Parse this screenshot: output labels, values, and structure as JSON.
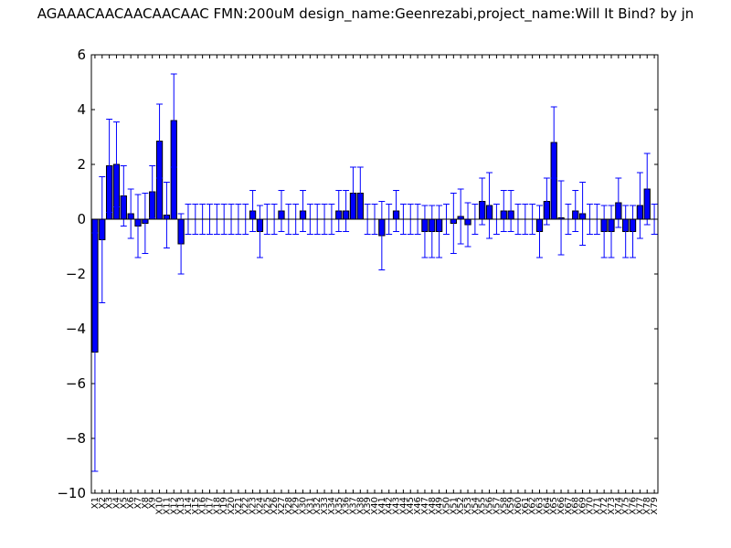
{
  "chart_data": {
    "type": "bar",
    "title": "AGAAACAACAACAACAAC  FMN:200uM  design_name:Geenrezabi,project_name:Will It Bind? by jn",
    "xlabel": "",
    "ylabel": "",
    "ylim": [
      -10,
      6
    ],
    "yticks": [
      -10,
      -8,
      -6,
      -4,
      -2,
      0,
      2,
      4,
      6
    ],
    "grid": false,
    "bar_color": "#0000ff",
    "error_color": "#0000ff",
    "categories": [
      "X1",
      "X2",
      "X3",
      "X4",
      "X5",
      "X6",
      "X7",
      "X8",
      "X9",
      "X10",
      "X11",
      "X12",
      "X13",
      "X14",
      "X15",
      "X16",
      "X17",
      "X18",
      "X19",
      "X20",
      "X21",
      "X22",
      "X23",
      "X24",
      "X25",
      "X26",
      "X27",
      "X28",
      "X29",
      "X30",
      "X31",
      "X32",
      "X33",
      "X34",
      "X35",
      "X36",
      "X37",
      "X38",
      "X39",
      "X40",
      "X41",
      "X42",
      "X43",
      "X44",
      "X45",
      "X46",
      "X47",
      "X48",
      "X49",
      "X50",
      "X51",
      "X52",
      "X53",
      "X54",
      "X55",
      "X56",
      "X57",
      "X58",
      "X59",
      "X60",
      "X61",
      "X62",
      "X63",
      "X64",
      "X65",
      "X66",
      "X67",
      "X68",
      "X69",
      "X70",
      "X71",
      "X72",
      "X73",
      "X74",
      "X75",
      "X76",
      "X77",
      "X78",
      "X79"
    ],
    "values": [
      -4.85,
      -0.75,
      1.95,
      2.0,
      0.85,
      0.2,
      -0.25,
      -0.15,
      1.0,
      2.85,
      0.15,
      3.6,
      -0.9,
      0,
      0,
      0,
      0,
      0,
      0,
      0,
      0,
      0,
      0.3,
      -0.45,
      0,
      0,
      0.3,
      0,
      0,
      0.3,
      0,
      0,
      0,
      0,
      0.3,
      0.3,
      0.95,
      0.95,
      0,
      0,
      -0.6,
      0,
      0.3,
      0,
      0,
      0,
      -0.45,
      -0.45,
      -0.45,
      0,
      -0.15,
      0.1,
      -0.2,
      0,
      0.65,
      0.5,
      0,
      0.3,
      0.3,
      0,
      0,
      0,
      -0.45,
      0.65,
      2.8,
      0.05,
      0,
      0.3,
      0.2,
      0,
      0,
      -0.45,
      -0.45,
      0.6,
      -0.45,
      -0.45,
      0.5,
      1.1,
      0
    ],
    "errors": [
      4.35,
      2.3,
      1.7,
      1.55,
      1.1,
      0.9,
      1.15,
      1.1,
      0.95,
      1.35,
      1.2,
      1.7,
      1.1,
      0.55,
      0.55,
      0.55,
      0.55,
      0.55,
      0.55,
      0.55,
      0.55,
      0.55,
      0.75,
      0.95,
      0.55,
      0.55,
      0.75,
      0.55,
      0.55,
      0.75,
      0.55,
      0.55,
      0.55,
      0.55,
      0.75,
      0.75,
      0.95,
      0.95,
      0.55,
      0.55,
      1.25,
      0.55,
      0.75,
      0.55,
      0.55,
      0.55,
      0.95,
      0.95,
      0.95,
      0.55,
      1.1,
      1.0,
      0.8,
      0.55,
      0.85,
      1.2,
      0.55,
      0.75,
      0.75,
      0.55,
      0.55,
      0.55,
      0.95,
      0.85,
      1.3,
      1.35,
      0.55,
      0.75,
      1.15,
      0.55,
      0.55,
      0.95,
      0.95,
      0.9,
      0.95,
      0.95,
      1.2,
      1.3,
      0.55
    ]
  }
}
